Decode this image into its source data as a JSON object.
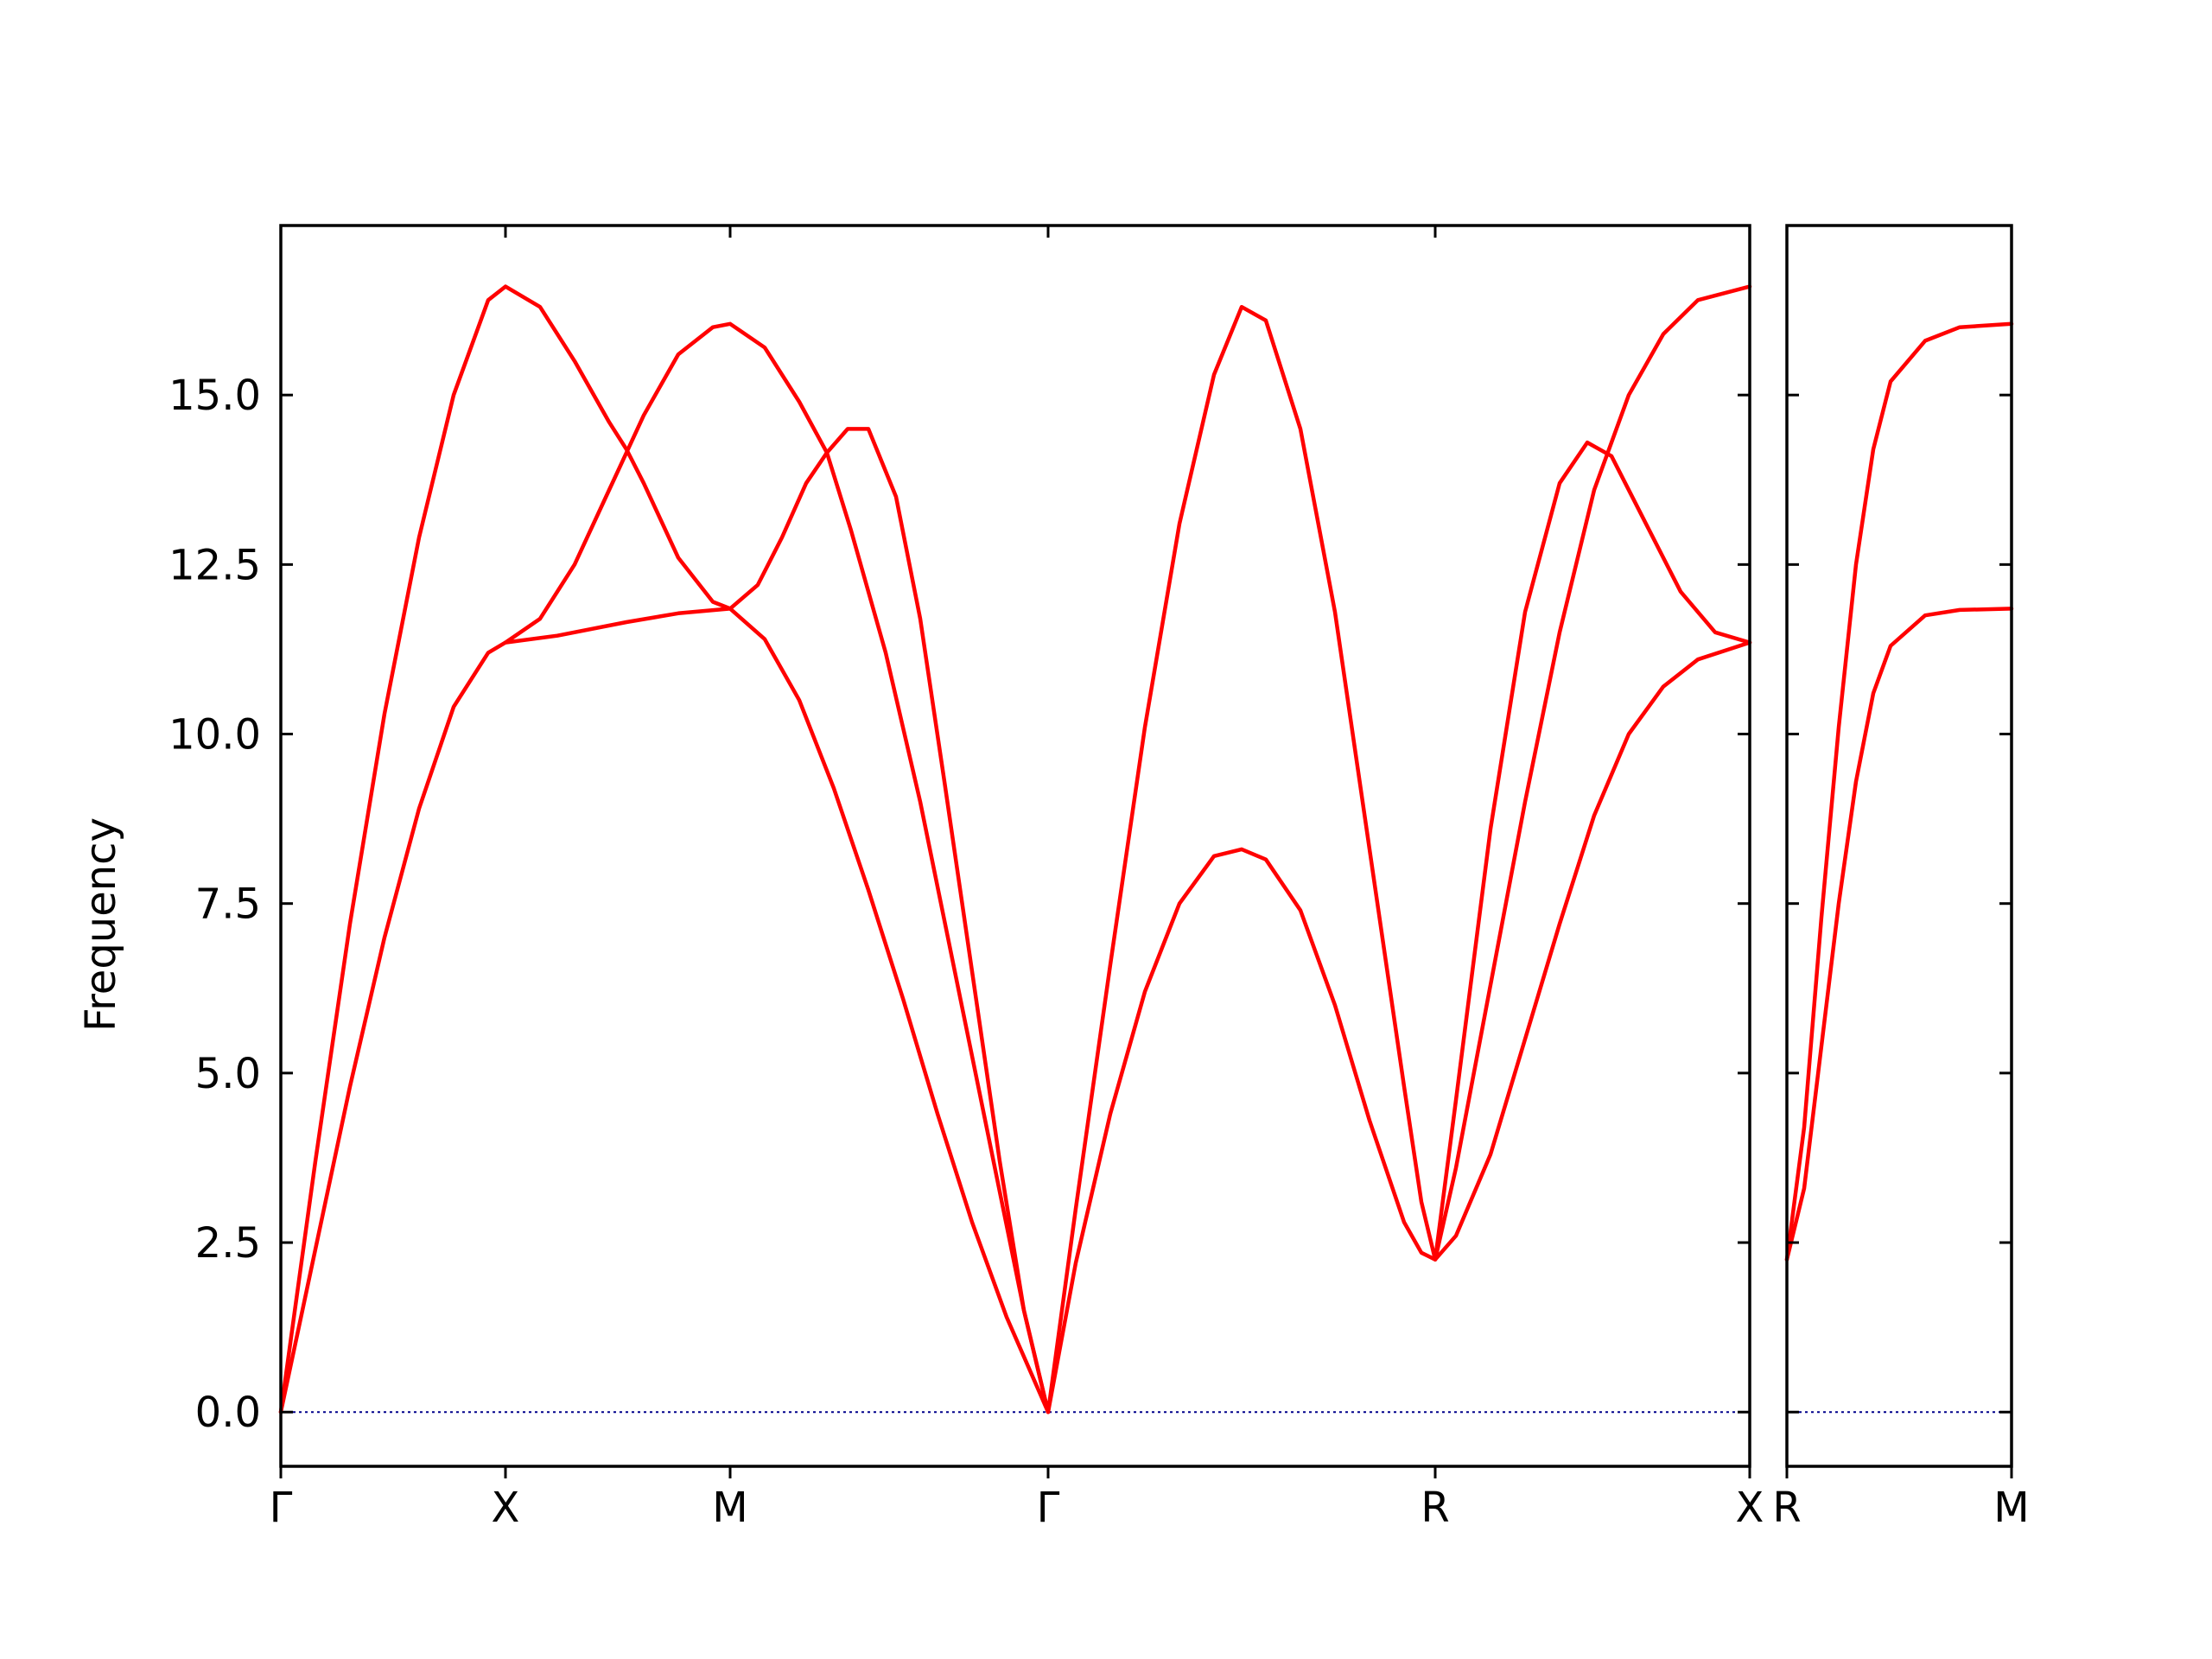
{
  "chart_data": {
    "type": "line",
    "title": "",
    "ylabel": "Frequency",
    "xlabel": "",
    "ylim": [
      -0.8,
      17.5
    ],
    "yticks": [
      "0.0",
      "2.5",
      "5.0",
      "7.5",
      "10.0",
      "12.5",
      "15.0"
    ],
    "ytick_values": [
      0.0,
      2.5,
      5.0,
      7.5,
      10.0,
      12.5,
      15.0
    ],
    "grid": false,
    "colors": {
      "bands": "#ff0000",
      "zero_line": "#00008b",
      "axes": "#000000"
    },
    "panels": [
      {
        "xlim": [
          0,
          4.25
        ],
        "xticks": [
          {
            "label": "Γ",
            "x": 0.0
          },
          {
            "label": "X",
            "x": 0.65
          },
          {
            "label": "M",
            "x": 1.3
          },
          {
            "label": "Γ",
            "x": 2.22
          },
          {
            "label": "R",
            "x": 3.34
          },
          {
            "label": "X",
            "x": 4.25
          }
        ],
        "series": [
          {
            "values": [
              [
                0,
                0
              ],
              [
                0.1,
                3.7
              ],
              [
                0.2,
                7.2
              ],
              [
                0.3,
                10.3
              ],
              [
                0.4,
                12.9
              ],
              [
                0.5,
                15.0
              ],
              [
                0.6,
                16.4
              ],
              [
                0.65,
                16.6
              ],
              [
                0.75,
                16.3
              ],
              [
                0.85,
                15.5
              ],
              [
                0.95,
                14.6
              ],
              [
                1.0,
                14.2
              ],
              [
                1.05,
                13.7
              ],
              [
                1.15,
                12.6
              ],
              [
                1.25,
                11.95
              ],
              [
                1.3,
                11.85
              ],
              [
                1.4,
                11.4
              ],
              [
                1.5,
                10.5
              ],
              [
                1.6,
                9.2
              ],
              [
                1.7,
                7.7
              ],
              [
                1.8,
                6.1
              ],
              [
                1.9,
                4.4
              ],
              [
                2.0,
                2.8
              ],
              [
                2.1,
                1.4
              ],
              [
                2.22,
                0
              ]
            ]
          },
          {
            "values": [
              [
                0,
                0
              ],
              [
                0.1,
                2.4
              ],
              [
                0.2,
                4.8
              ],
              [
                0.3,
                7.0
              ],
              [
                0.4,
                8.9
              ],
              [
                0.5,
                10.4
              ],
              [
                0.6,
                11.2
              ],
              [
                0.65,
                11.35
              ],
              [
                0.75,
                11.7
              ],
              [
                0.85,
                12.5
              ],
              [
                0.95,
                13.6
              ],
              [
                1.0,
                14.15
              ],
              [
                1.05,
                14.7
              ],
              [
                1.15,
                15.6
              ],
              [
                1.25,
                16.0
              ],
              [
                1.3,
                16.05
              ],
              [
                1.4,
                15.7
              ],
              [
                1.5,
                14.9
              ],
              [
                1.58,
                14.15
              ],
              [
                1.65,
                13.0
              ],
              [
                1.75,
                11.2
              ],
              [
                1.85,
                9.0
              ],
              [
                1.95,
                6.5
              ],
              [
                2.05,
                4.0
              ],
              [
                2.15,
                1.5
              ],
              [
                2.22,
                0
              ]
            ]
          },
          {
            "values": [
              [
                0.65,
                11.35
              ],
              [
                0.8,
                11.45
              ],
              [
                1.0,
                11.65
              ],
              [
                1.15,
                11.78
              ],
              [
                1.3,
                11.85
              ],
              [
                1.38,
                12.2
              ],
              [
                1.45,
                12.9
              ],
              [
                1.52,
                13.7
              ],
              [
                1.58,
                14.15
              ],
              [
                1.64,
                14.5
              ],
              [
                1.7,
                14.5
              ],
              [
                1.78,
                13.5
              ],
              [
                1.85,
                11.7
              ],
              [
                1.92,
                9.3
              ],
              [
                2.0,
                6.5
              ],
              [
                2.08,
                3.7
              ],
              [
                2.15,
                1.5
              ],
              [
                2.22,
                0
              ]
            ]
          },
          {
            "values": [
              [
                2.22,
                0
              ],
              [
                2.3,
                2.2
              ],
              [
                2.4,
                4.4
              ],
              [
                2.5,
                6.2
              ],
              [
                2.6,
                7.5
              ],
              [
                2.7,
                8.2
              ],
              [
                2.78,
                8.3
              ],
              [
                2.85,
                8.15
              ],
              [
                2.95,
                7.4
              ],
              [
                3.05,
                6.0
              ],
              [
                3.15,
                4.3
              ],
              [
                3.25,
                2.8
              ],
              [
                3.3,
                2.35
              ],
              [
                3.34,
                2.25
              ],
              [
                3.4,
                2.6
              ],
              [
                3.5,
                3.8
              ],
              [
                3.6,
                5.5
              ],
              [
                3.7,
                7.2
              ],
              [
                3.8,
                8.8
              ],
              [
                3.9,
                10.0
              ],
              [
                4.0,
                10.7
              ],
              [
                4.1,
                11.1
              ],
              [
                4.25,
                11.35
              ]
            ]
          },
          {
            "values": [
              [
                2.22,
                0
              ],
              [
                2.3,
                3.0
              ],
              [
                2.4,
                6.6
              ],
              [
                2.5,
                10.1
              ],
              [
                2.6,
                13.1
              ],
              [
                2.7,
                15.3
              ],
              [
                2.78,
                16.3
              ],
              [
                2.85,
                16.1
              ],
              [
                2.95,
                14.5
              ],
              [
                3.05,
                11.8
              ],
              [
                3.15,
                8.3
              ],
              [
                3.25,
                4.8
              ],
              [
                3.3,
                3.1
              ],
              [
                3.34,
                2.25
              ],
              [
                3.4,
                4.6
              ],
              [
                3.5,
                8.6
              ],
              [
                3.6,
                11.8
              ],
              [
                3.7,
                13.7
              ],
              [
                3.78,
                14.3
              ],
              [
                3.85,
                14.1
              ],
              [
                3.95,
                13.1
              ],
              [
                4.05,
                12.1
              ],
              [
                4.15,
                11.5
              ],
              [
                4.25,
                11.35
              ]
            ]
          },
          {
            "values": [
              [
                3.34,
                2.25
              ],
              [
                3.4,
                3.6
              ],
              [
                3.5,
                6.3
              ],
              [
                3.6,
                9.0
              ],
              [
                3.7,
                11.5
              ],
              [
                3.8,
                13.6
              ],
              [
                3.9,
                15.0
              ],
              [
                4.0,
                15.9
              ],
              [
                4.1,
                16.4
              ],
              [
                4.25,
                16.6
              ]
            ]
          }
        ]
      },
      {
        "xlim": [
          0,
          0.65
        ],
        "xticks": [
          {
            "label": "R",
            "x": 0.0
          },
          {
            "label": "M",
            "x": 0.65
          }
        ],
        "series": [
          {
            "values": [
              [
                0,
                2.25
              ],
              [
                0.05,
                3.3
              ],
              [
                0.1,
                5.4
              ],
              [
                0.15,
                7.5
              ],
              [
                0.2,
                9.3
              ],
              [
                0.25,
                10.6
              ],
              [
                0.3,
                11.3
              ],
              [
                0.4,
                11.75
              ],
              [
                0.5,
                11.83
              ],
              [
                0.65,
                11.85
              ]
            ]
          },
          {
            "values": [
              [
                0,
                2.25
              ],
              [
                0.05,
                4.2
              ],
              [
                0.1,
                7.3
              ],
              [
                0.15,
                10.1
              ],
              [
                0.2,
                12.5
              ],
              [
                0.25,
                14.2
              ],
              [
                0.3,
                15.2
              ],
              [
                0.4,
                15.8
              ],
              [
                0.5,
                16.0
              ],
              [
                0.65,
                16.05
              ]
            ]
          }
        ]
      }
    ]
  }
}
